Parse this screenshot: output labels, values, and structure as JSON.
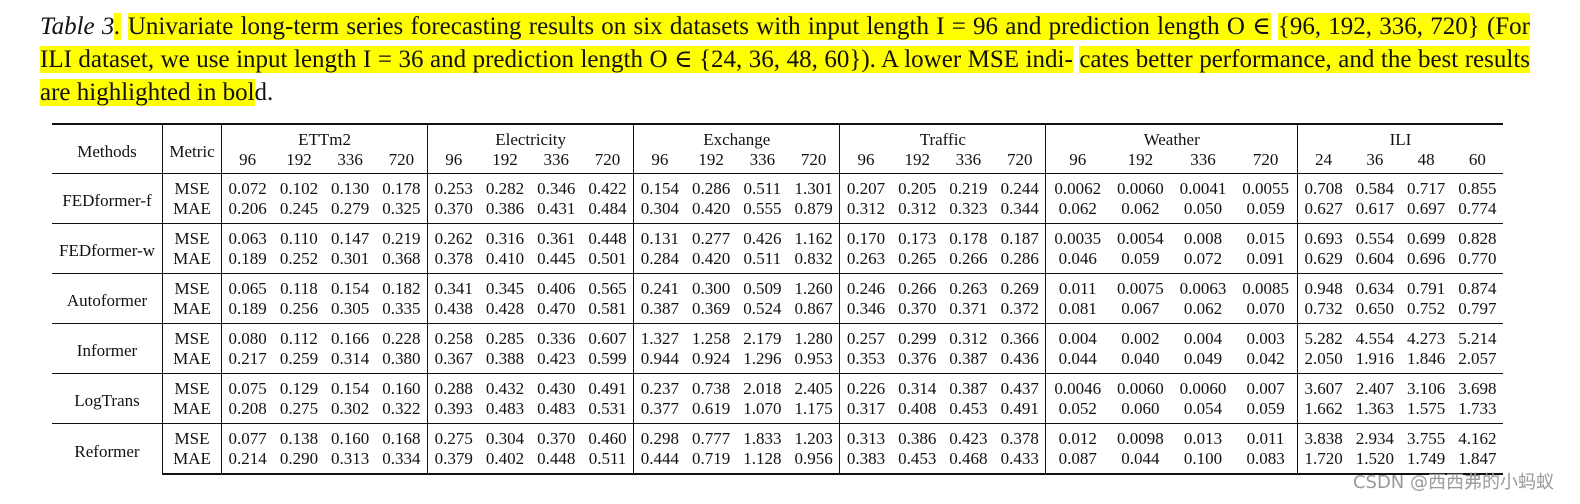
{
  "caption": {
    "label": "Table 3",
    "text_line1": "Univariate long-term series forecasting results on six datasets with input length I = 96 and prediction length O ∈",
    "text_line2": "{96, 192, 336, 720} (For ILI dataset, we use input length I = 36 and prediction length O ∈ {24, 36, 48, 60}). A lower MSE indi-",
    "text_line3": "cates better performance, and the best results are highlighted in bold.",
    "highlight_color": "#ffff00"
  },
  "table": {
    "header": {
      "methods": "Methods",
      "metric": "Metric",
      "datasets": [
        {
          "name": "ETTm2",
          "horizons": [
            "96",
            "192",
            "336",
            "720"
          ]
        },
        {
          "name": "Electricity",
          "horizons": [
            "96",
            "192",
            "336",
            "720"
          ]
        },
        {
          "name": "Exchange",
          "horizons": [
            "96",
            "192",
            "336",
            "720"
          ]
        },
        {
          "name": "Traffic",
          "horizons": [
            "96",
            "192",
            "336",
            "720"
          ]
        },
        {
          "name": "Weather",
          "horizons": [
            "96",
            "192",
            "336",
            "720"
          ]
        },
        {
          "name": "ILI",
          "horizons": [
            "24",
            "36",
            "48",
            "60"
          ]
        }
      ]
    },
    "rows": [
      {
        "method": "FEDformer-f",
        "mse": [
          "0.072",
          "0.102",
          "0.130",
          "0.178",
          "0.253",
          "0.282",
          "0.346",
          "0.422",
          "0.154",
          "0.286",
          "0.511",
          "1.301",
          "0.207",
          "0.205",
          "0.219",
          "0.244",
          "0.0062",
          "0.0060",
          "0.0041",
          "0.0055",
          "0.708",
          "0.584",
          "0.717",
          "0.855"
        ],
        "mse_bold": [
          0,
          1,
          1,
          1,
          1,
          1,
          1,
          1,
          0,
          0,
          0,
          0,
          0,
          0,
          0,
          0,
          0,
          0,
          1,
          1,
          0,
          0,
          0,
          0
        ],
        "mae": [
          "0.206",
          "0.245",
          "0.279",
          "0.325",
          "0.370",
          "0.386",
          "0.431",
          "0.484",
          "0.304",
          "0.420",
          "0.555",
          "0.879",
          "0.312",
          "0.312",
          "0.323",
          "0.344",
          "0.062",
          "0.062",
          "0.050",
          "0.059",
          "0.627",
          "0.617",
          "0.697",
          "0.774"
        ],
        "mae_bold": [
          0,
          1,
          1,
          1,
          1,
          1,
          1,
          1,
          0,
          0,
          0,
          0,
          0,
          0,
          0,
          0,
          0,
          0,
          1,
          1,
          0,
          0,
          0,
          0
        ]
      },
      {
        "method": "FEDformer-w",
        "mse": [
          "0.063",
          "0.110",
          "0.147",
          "0.219",
          "0.262",
          "0.316",
          "0.361",
          "0.448",
          "0.131",
          "0.277",
          "0.426",
          "1.162",
          "0.170",
          "0.173",
          "0.178",
          "0.187",
          "0.0035",
          "0.0054",
          "0.008",
          "0.015",
          "0.693",
          "0.554",
          "0.699",
          "0.828"
        ],
        "mse_bold": [
          1,
          0,
          0,
          0,
          0,
          0,
          0,
          0,
          1,
          1,
          1,
          1,
          1,
          1,
          1,
          1,
          1,
          1,
          0,
          0,
          1,
          1,
          1,
          1
        ],
        "mae": [
          "0.189",
          "0.252",
          "0.301",
          "0.368",
          "0.378",
          "0.410",
          "0.445",
          "0.501",
          "0.284",
          "0.420",
          "0.511",
          "0.832",
          "0.263",
          "0.265",
          "0.266",
          "0.286",
          "0.046",
          "0.059",
          "0.072",
          "0.091",
          "0.629",
          "0.604",
          "0.696",
          "0.770"
        ],
        "mae_bold": [
          1,
          0,
          0,
          0,
          0,
          0,
          0,
          0,
          1,
          1,
          1,
          1,
          1,
          1,
          1,
          1,
          1,
          1,
          0,
          0,
          1,
          1,
          1,
          1
        ]
      },
      {
        "method": "Autoformer",
        "mse": [
          "0.065",
          "0.118",
          "0.154",
          "0.182",
          "0.341",
          "0.345",
          "0.406",
          "0.565",
          "0.241",
          "0.300",
          "0.509",
          "1.260",
          "0.246",
          "0.266",
          "0.263",
          "0.269",
          "0.011",
          "0.0075",
          "0.0063",
          "0.0085",
          "0.948",
          "0.634",
          "0.791",
          "0.874"
        ],
        "mse_bold": [],
        "mae": [
          "0.189",
          "0.256",
          "0.305",
          "0.335",
          "0.438",
          "0.428",
          "0.470",
          "0.581",
          "0.387",
          "0.369",
          "0.524",
          "0.867",
          "0.346",
          "0.370",
          "0.371",
          "0.372",
          "0.081",
          "0.067",
          "0.062",
          "0.070",
          "0.732",
          "0.650",
          "0.752",
          "0.797"
        ],
        "mae_bold": []
      },
      {
        "method": "Informer",
        "mse": [
          "0.080",
          "0.112",
          "0.166",
          "0.228",
          "0.258",
          "0.285",
          "0.336",
          "0.607",
          "1.327",
          "1.258",
          "2.179",
          "1.280",
          "0.257",
          "0.299",
          "0.312",
          "0.366",
          "0.004",
          "0.002",
          "0.004",
          "0.003",
          "5.282",
          "4.554",
          "4.273",
          "5.214"
        ],
        "mse_bold": [],
        "mae": [
          "0.217",
          "0.259",
          "0.314",
          "0.380",
          "0.367",
          "0.388",
          "0.423",
          "0.599",
          "0.944",
          "0.924",
          "1.296",
          "0.953",
          "0.353",
          "0.376",
          "0.387",
          "0.436",
          "0.044",
          "0.040",
          "0.049",
          "0.042",
          "2.050",
          "1.916",
          "1.846",
          "2.057"
        ],
        "mae_bold": []
      },
      {
        "method": "LogTrans",
        "mse": [
          "0.075",
          "0.129",
          "0.154",
          "0.160",
          "0.288",
          "0.432",
          "0.430",
          "0.491",
          "0.237",
          "0.738",
          "2.018",
          "2.405",
          "0.226",
          "0.314",
          "0.387",
          "0.437",
          "0.0046",
          "0.0060",
          "0.0060",
          "0.007",
          "3.607",
          "2.407",
          "3.106",
          "3.698"
        ],
        "mse_bold": [],
        "mae": [
          "0.208",
          "0.275",
          "0.302",
          "0.322",
          "0.393",
          "0.483",
          "0.483",
          "0.531",
          "0.377",
          "0.619",
          "1.070",
          "1.175",
          "0.317",
          "0.408",
          "0.453",
          "0.491",
          "0.052",
          "0.060",
          "0.054",
          "0.059",
          "1.662",
          "1.363",
          "1.575",
          "1.733"
        ],
        "mae_bold": []
      },
      {
        "method": "Reformer",
        "mse": [
          "0.077",
          "0.138",
          "0.160",
          "0.168",
          "0.275",
          "0.304",
          "0.370",
          "0.460",
          "0.298",
          "0.777",
          "1.833",
          "1.203",
          "0.313",
          "0.386",
          "0.423",
          "0.378",
          "0.012",
          "0.0098",
          "0.013",
          "0.011",
          "3.838",
          "2.934",
          "3.755",
          "4.162"
        ],
        "mse_bold": [],
        "mae": [
          "0.214",
          "0.290",
          "0.313",
          "0.334",
          "0.379",
          "0.402",
          "0.448",
          "0.511",
          "0.444",
          "0.719",
          "1.128",
          "0.956",
          "0.383",
          "0.453",
          "0.468",
          "0.433",
          "0.087",
          "0.044",
          "0.100",
          "0.083",
          "1.720",
          "1.520",
          "1.749",
          "1.847"
        ],
        "mae_bold": []
      }
    ],
    "metric_labels": {
      "mse": "MSE",
      "mae": "MAE"
    }
  },
  "watermark": "CSDN @西西弗的小蚂蚁"
}
